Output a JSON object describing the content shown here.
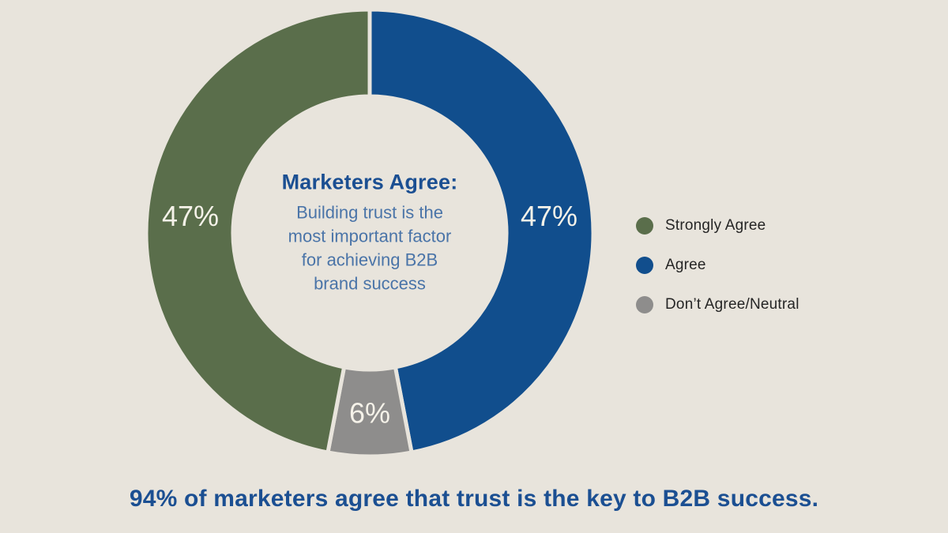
{
  "background_color": "#e8e4dc",
  "chart_data": {
    "type": "pie",
    "subtype": "donut",
    "direction": "clockwise",
    "start_angle_deg": 0,
    "inner_radius_ratio": 0.61,
    "gap_color": "#e8e4dc",
    "value_suffix": "%",
    "segments": [
      {
        "label": "Agree",
        "value": 47,
        "color": "#114e8d"
      },
      {
        "label": "Don’t Agree/Neutral",
        "value": 6,
        "color": "#8e8d8c"
      },
      {
        "label": "Strongly Agree",
        "value": 47,
        "color": "#5a6e4b"
      }
    ],
    "legend_position": "right",
    "legend": [
      {
        "label": "Strongly Agree",
        "color": "#5a6e4b"
      },
      {
        "label": "Agree",
        "color": "#114e8d"
      },
      {
        "label": "Don’t Agree/Neutral",
        "color": "#8e8d8c"
      }
    ],
    "center_title": "Marketers Agree:",
    "center_text": "Building trust is the most important factor for achieving B2B brand success",
    "center_text_lines": [
      "Building trust is the",
      "most important factor",
      "for achieving B2B",
      "brand success"
    ],
    "caption": "94% of marketers agree that trust is the key to B2B success."
  },
  "colors": {
    "heading_blue": "#1b4f92",
    "body_blue": "#4a74a8",
    "segment_label": "#f5f2e9",
    "legend_text": "#252525"
  }
}
